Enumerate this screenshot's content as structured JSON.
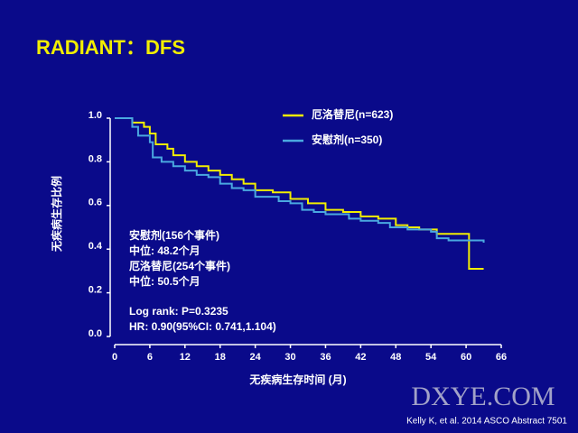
{
  "chart_data": {
    "type": "step",
    "title": "RADIANT：DFS",
    "x_label": "无疾病生存时间 (月)",
    "y_label": "无疾病生存比例",
    "xlim": [
      0,
      66
    ],
    "ylim": [
      0,
      1
    ],
    "xticks": [
      0,
      6,
      12,
      18,
      24,
      30,
      36,
      42,
      48,
      54,
      60,
      66
    ],
    "yticks": [
      {
        "value": 0,
        "label": "0.0"
      },
      0.2,
      0.4,
      0.6,
      0.8,
      {
        "value": 1,
        "label": "1.0"
      }
    ],
    "series": [
      {
        "name": "厄洛替尼(n=623)",
        "color": "#f2ee00",
        "x": [
          0,
          3,
          5,
          6,
          7,
          9,
          10,
          12,
          14,
          16,
          18,
          20,
          22,
          24,
          27,
          30,
          33,
          36,
          39,
          42,
          45,
          48,
          50,
          52,
          55,
          60.5,
          63
        ],
        "values": [
          1.0,
          0.98,
          0.96,
          0.93,
          0.88,
          0.86,
          0.83,
          0.8,
          0.78,
          0.76,
          0.74,
          0.72,
          0.7,
          0.67,
          0.66,
          0.63,
          0.61,
          0.58,
          0.57,
          0.55,
          0.54,
          0.51,
          0.5,
          0.49,
          0.47,
          0.31,
          0.31
        ]
      },
      {
        "name": "安慰剂(n=350)",
        "color": "#4aa8e0",
        "x": [
          0,
          3,
          4,
          6,
          6.5,
          8,
          10,
          12,
          14,
          16,
          18,
          20,
          22,
          24,
          28,
          30,
          32,
          34,
          36,
          40,
          42,
          45,
          47,
          50,
          54,
          55,
          57,
          63
        ],
        "values": [
          1.0,
          0.96,
          0.92,
          0.89,
          0.82,
          0.8,
          0.78,
          0.76,
          0.74,
          0.73,
          0.7,
          0.68,
          0.67,
          0.64,
          0.62,
          0.61,
          0.58,
          0.57,
          0.56,
          0.54,
          0.53,
          0.52,
          0.5,
          0.49,
          0.48,
          0.45,
          0.44,
          0.43
        ]
      }
    ],
    "annotations": [
      "安慰剂(156个事件)",
      "中位: 48.2个月",
      "厄洛替尼(254个事件)",
      "中位: 50.5个月",
      "Log rank:   P=0.3235",
      "HR: 0.90(95%CI: 0.741,1.104)"
    ],
    "citation": "Kelly K, et al. 2014 ASCO Abstract 7501",
    "watermark": "DXYE.COM"
  }
}
